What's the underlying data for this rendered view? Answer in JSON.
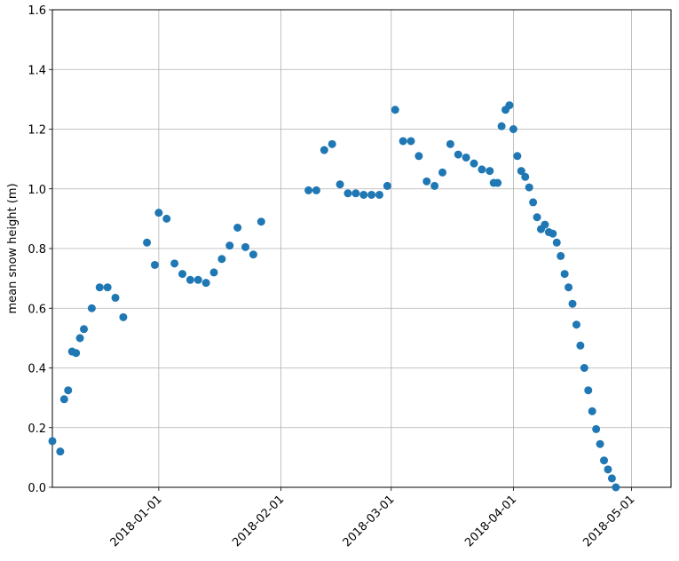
{
  "chart_data": {
    "type": "scatter",
    "y_label": "mean snow height (m)",
    "color": "#1f77b4",
    "grid": true,
    "x": [
      "2017-12-05",
      "2017-12-07",
      "2017-12-08",
      "2017-12-09",
      "2017-12-10",
      "2017-12-11",
      "2017-12-12",
      "2017-12-13",
      "2017-12-15",
      "2017-12-17",
      "2017-12-19",
      "2017-12-21",
      "2017-12-23",
      "2017-12-29",
      "2017-12-31",
      "2018-01-01",
      "2018-01-03",
      "2018-01-05",
      "2018-01-07",
      "2018-01-09",
      "2018-01-11",
      "2018-01-13",
      "2018-01-15",
      "2018-01-17",
      "2018-01-19",
      "2018-01-21",
      "2018-01-23",
      "2018-01-25",
      "2018-01-27",
      "2018-02-08",
      "2018-02-10",
      "2018-02-12",
      "2018-02-14",
      "2018-02-16",
      "2018-02-18",
      "2018-02-20",
      "2018-02-22",
      "2018-02-24",
      "2018-02-26",
      "2018-02-28",
      "2018-03-02",
      "2018-03-04",
      "2018-03-06",
      "2018-03-08",
      "2018-03-10",
      "2018-03-12",
      "2018-03-14",
      "2018-03-16",
      "2018-03-18",
      "2018-03-20",
      "2018-03-22",
      "2018-03-24",
      "2018-03-26",
      "2018-03-27",
      "2018-03-28",
      "2018-03-29",
      "2018-03-30",
      "2018-03-31",
      "2018-04-01",
      "2018-04-02",
      "2018-04-03",
      "2018-04-04",
      "2018-04-05",
      "2018-04-06",
      "2018-04-07",
      "2018-04-08",
      "2018-04-09",
      "2018-04-10",
      "2018-04-11",
      "2018-04-12",
      "2018-04-13",
      "2018-04-14",
      "2018-04-15",
      "2018-04-16",
      "2018-04-17",
      "2018-04-18",
      "2018-04-19",
      "2018-04-20",
      "2018-04-21",
      "2018-04-22",
      "2018-04-23",
      "2018-04-24",
      "2018-04-25",
      "2018-04-26",
      "2018-04-27"
    ],
    "values": [
      0.155,
      0.12,
      0.295,
      0.325,
      0.455,
      0.45,
      0.5,
      0.53,
      0.6,
      0.67,
      0.67,
      0.635,
      0.57,
      0.82,
      0.745,
      0.92,
      0.9,
      0.75,
      0.715,
      0.695,
      0.695,
      0.685,
      0.72,
      0.765,
      0.81,
      0.87,
      0.805,
      0.78,
      0.89,
      0.995,
      0.995,
      1.13,
      1.15,
      1.015,
      0.985,
      0.985,
      0.98,
      0.98,
      0.98,
      1.01,
      1.265,
      1.16,
      1.16,
      1.11,
      1.025,
      1.01,
      1.055,
      1.15,
      1.115,
      1.105,
      1.085,
      1.065,
      1.06,
      1.02,
      1.02,
      1.21,
      1.265,
      1.28,
      1.2,
      1.11,
      1.06,
      1.04,
      1.005,
      0.955,
      0.905,
      0.865,
      0.88,
      0.855,
      0.85,
      0.82,
      0.775,
      0.715,
      0.67,
      0.615,
      0.545,
      0.475,
      0.4,
      0.325,
      0.255,
      0.195,
      0.145,
      0.09,
      0.06,
      0.03,
      0.0
    ],
    "xlim": [
      "2017-12-05",
      "2018-05-11"
    ],
    "xticks": [
      "2018-01-01",
      "2018-02-01",
      "2018-03-01",
      "2018-04-01",
      "2018-05-01"
    ],
    "ylim": [
      0,
      1.6
    ],
    "yticks": [
      {
        "value": 0,
        "label": "0.0"
      },
      0.2,
      0.4,
      0.6,
      0.8,
      {
        "value": 1,
        "label": "1.0"
      },
      1.2,
      1.4,
      1.6
    ]
  }
}
